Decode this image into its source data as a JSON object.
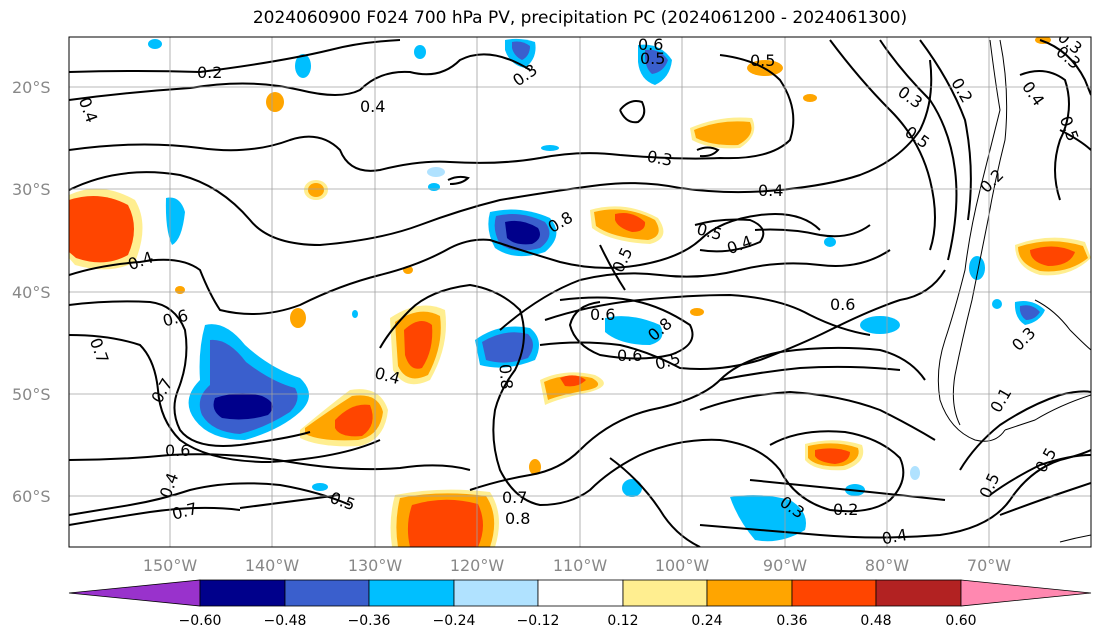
{
  "title": "2024060900 F024 700 hPa PV, precipitation PC (2024061200 - 2024061300)",
  "map": {
    "lon_ticks": [
      "150°W",
      "140°W",
      "130°W",
      "120°W",
      "110°W",
      "100°W",
      "90°W",
      "80°W",
      "70°W"
    ],
    "lat_ticks": [
      "20°S",
      "30°S",
      "40°S",
      "50°S",
      "60°S"
    ],
    "contour_labels": [
      "0.2",
      "0.4",
      "0.4",
      "0.3",
      "0.6",
      "0.5",
      "0.5",
      "0.3",
      "0.2",
      "0.3",
      "0.4",
      "0.5",
      "0.4",
      "0.5",
      "0.3",
      "0.4",
      "0.6",
      "0.7",
      "0.7",
      "0.8",
      "0.6",
      "0.5",
      "0.6",
      "0.6",
      "0.5",
      "0.8",
      "0.4",
      "0.6",
      "0.5",
      "0.4",
      "0.8",
      "0.7",
      "0.8",
      "0.3",
      "0.2",
      "0.4",
      "0.5",
      "0.4",
      "0.1",
      "0.3",
      "0.7",
      "0.5",
      "0.2",
      "0.3",
      "0.5"
    ]
  },
  "colorbar": {
    "tick_labels": [
      "−0.60",
      "−0.48",
      "−0.36",
      "−0.24",
      "−0.12",
      "0.12",
      "0.24",
      "0.36",
      "0.48",
      "0.60"
    ],
    "colors": [
      "#9932cc",
      "#00008b",
      "#3a5fcd",
      "#00bfff",
      "#b0e2ff",
      "#ffffff",
      "#ffee90",
      "#ffa500",
      "#ff4500",
      "#b22222",
      "#ff88b0"
    ]
  }
}
